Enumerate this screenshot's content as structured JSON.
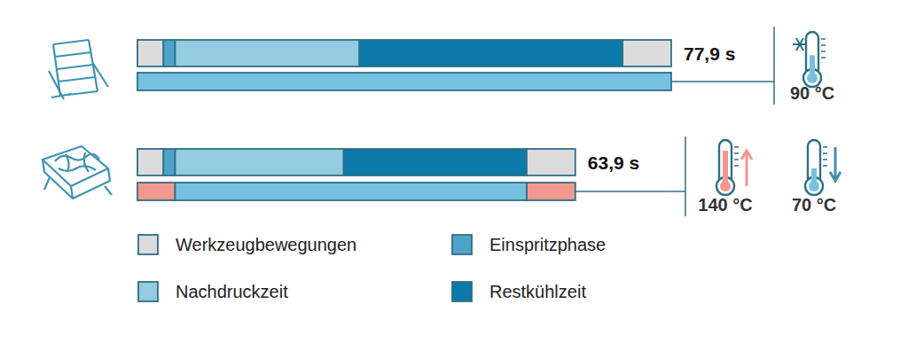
{
  "chart_data": {
    "type": "bar",
    "orientation": "horizontal",
    "stacked": true,
    "tick_labels": false,
    "series": [
      {
        "name": "Werkzeugbewegungen",
        "color": "#dcdcdc"
      },
      {
        "name": "Einspritzphase",
        "color": "#4fa3c8"
      },
      {
        "name": "Nachdruckzeit",
        "color": "#93cbe0"
      },
      {
        "name": "Restkühlzeit",
        "color": "#0b79aa"
      }
    ],
    "cycles": [
      {
        "total": 77.9,
        "total_label": "77,9 s",
        "segments": [
          {
            "series": 0,
            "value": 3.8
          },
          {
            "series": 1,
            "value": 1.7
          },
          {
            "series": 2,
            "value": 26.9
          },
          {
            "series": 3,
            "value": 38.4
          },
          {
            "series": 0,
            "value": 7.1
          }
        ],
        "temperature_segments": [
          {
            "value": 77.9,
            "color": "#76c1df"
          }
        ],
        "temperatures": [
          {
            "value": 90,
            "label": "90 °C",
            "color": "#76c1df",
            "marker": "snowflake"
          }
        ]
      },
      {
        "total": 63.9,
        "total_label": "63,9 s",
        "segments": [
          {
            "series": 0,
            "value": 3.8
          },
          {
            "series": 1,
            "value": 1.7
          },
          {
            "series": 2,
            "value": 24.6
          },
          {
            "series": 3,
            "value": 26.7
          },
          {
            "series": 0,
            "value": 7.1
          }
        ],
        "temperature_segments": [
          {
            "value": 5.5,
            "color": "#f4978e"
          },
          {
            "value": 51.3,
            "color": "#76c1df"
          },
          {
            "value": 7.1,
            "color": "#f4978e"
          }
        ],
        "temperatures": [
          {
            "value": 140,
            "label": "140 °C",
            "color": "#f4978e",
            "marker": "up"
          },
          {
            "value": 70,
            "label": "70 °C",
            "color": "#76c1df",
            "marker": "down"
          }
        ]
      }
    ]
  }
}
